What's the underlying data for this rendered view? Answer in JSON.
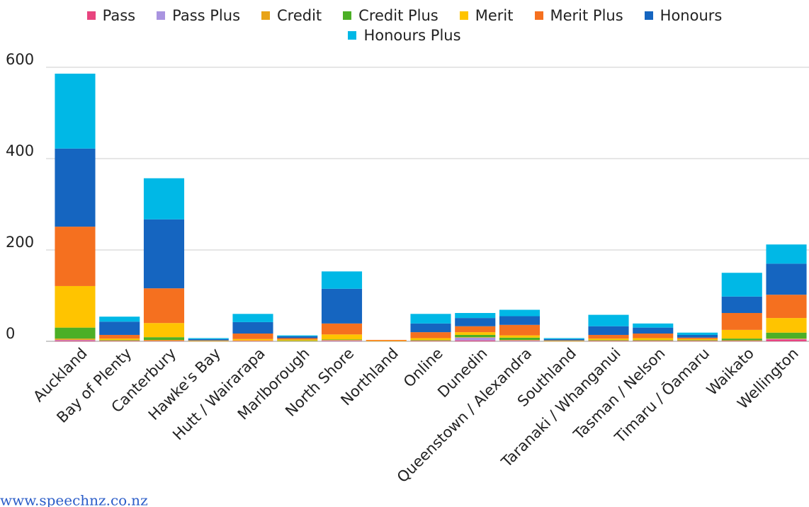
{
  "chart_data": {
    "type": "stacked_bar",
    "categories": [
      "Auckland",
      "Bay of Plenty",
      "Canterbury",
      "Hawke's Bay",
      "Hutt / Wairarapa",
      "Marlborough",
      "North Shore",
      "Northland",
      "Online",
      "Dunedin",
      "Queenstown / Alexandra",
      "Southland",
      "Taranaki / Whanganui",
      "Tasman / Nelson",
      "Timaru / Ōamaru",
      "Waikato",
      "Wellington"
    ],
    "series": [
      {
        "name": "Pass",
        "color": "#e8457f",
        "values": [
          2,
          1,
          1,
          0,
          1,
          0,
          1,
          0,
          1,
          2,
          1,
          0,
          1,
          1,
          1,
          1,
          4
        ]
      },
      {
        "name": "Pass Plus",
        "color": "#a994e0",
        "values": [
          1,
          0,
          0,
          0,
          0,
          0,
          1,
          0,
          0,
          6,
          1,
          0,
          0,
          0,
          0,
          0,
          1
        ]
      },
      {
        "name": "Credit",
        "color": "#e8a317",
        "values": [
          3,
          1,
          2,
          0,
          1,
          1,
          1,
          0,
          1,
          1,
          1,
          0,
          1,
          1,
          1,
          1,
          1
        ]
      },
      {
        "name": "Credit Plus",
        "color": "#4caf26",
        "values": [
          24,
          1,
          6,
          0,
          0,
          1,
          1,
          0,
          1,
          5,
          5,
          0,
          1,
          1,
          1,
          4,
          13
        ]
      },
      {
        "name": "Merit",
        "color": "#ffc400",
        "values": [
          91,
          3,
          31,
          1,
          3,
          2,
          11,
          1,
          4,
          6,
          5,
          1,
          3,
          4,
          2,
          19,
          32
        ]
      },
      {
        "name": "Merit Plus",
        "color": "#f5701f",
        "values": [
          130,
          8,
          76,
          1,
          12,
          3,
          24,
          2,
          13,
          13,
          23,
          1,
          8,
          10,
          3,
          37,
          51
        ]
      },
      {
        "name": "Honours",
        "color": "#1565c0",
        "values": [
          171,
          29,
          151,
          3,
          25,
          4,
          76,
          0,
          19,
          18,
          19,
          3,
          19,
          13,
          6,
          36,
          68
        ]
      },
      {
        "name": "Honours Plus",
        "color": "#00b8e6",
        "values": [
          164,
          11,
          90,
          2,
          18,
          2,
          38,
          0,
          21,
          11,
          14,
          2,
          25,
          9,
          5,
          52,
          42
        ]
      }
    ],
    "ylim": [
      0,
      600
    ],
    "yticks": [
      0,
      200,
      400,
      600
    ],
    "grid": true,
    "legend": "top"
  },
  "footer": "www.speechnz.co.nz"
}
